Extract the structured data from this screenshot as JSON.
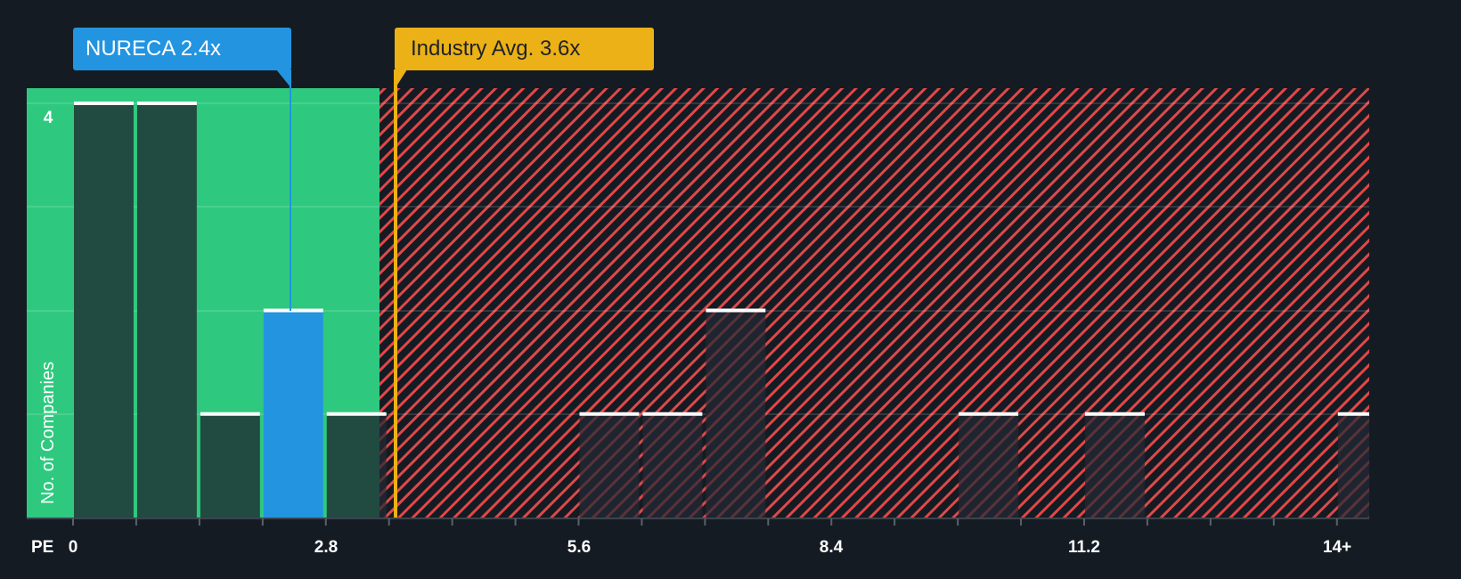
{
  "colors": {
    "background": "#151b23",
    "below_avg_region": "#2ec97f",
    "above_avg_hatch": "#e04848",
    "bar_fill_below": "#214a41",
    "bar_fill_above": "#1f2530",
    "company_bar": "#2394e0",
    "industry_line": "#ebb116",
    "bar_cap": "#ffffff"
  },
  "callouts": {
    "company": {
      "label": "NURECA 2.4x",
      "value": 2.4
    },
    "industry": {
      "label": "Industry Avg. 3.6x",
      "value": 3.6
    }
  },
  "axes": {
    "x_title": "PE",
    "y_title": "No. of Companies",
    "x_ticks": [
      "0",
      "2.8",
      "5.6",
      "8.4",
      "11.2",
      "14+"
    ],
    "y_ticks": [
      "4"
    ]
  },
  "chart_data": {
    "type": "bar",
    "title": "",
    "xlabel": "PE",
    "ylabel": "No. of Companies",
    "bin_width": 0.7,
    "categories": [
      "0-0.7",
      "0.7-1.4",
      "1.4-2.1",
      "2.1-2.8",
      "2.8-3.5",
      "3.5-4.2",
      "4.2-4.9",
      "4.9-5.6",
      "5.6-6.3",
      "6.3-7.0",
      "7.0-7.7",
      "7.7-8.4",
      "8.4-9.1",
      "9.1-9.8",
      "9.8-10.5",
      "10.5-11.2",
      "11.2-11.9",
      "11.9-12.6",
      "12.6-13.3",
      "13.3-14.0",
      "14+"
    ],
    "values": [
      4,
      4,
      1,
      2,
      1,
      0,
      0,
      0,
      1,
      1,
      2,
      0,
      0,
      0,
      1,
      0,
      1,
      0,
      0,
      0,
      1
    ],
    "highlight_bin": 3,
    "company": "NURECA",
    "company_value": 2.4,
    "industry_avg": 3.6,
    "x_tick_labels": [
      "0",
      "2.8",
      "5.6",
      "8.4",
      "11.2",
      "14+"
    ],
    "y_tick_labels": [
      "4"
    ],
    "ylim": [
      0,
      4.15
    ],
    "grid": true,
    "legend": "none",
    "annotations": [
      "NURECA 2.4x",
      "Industry Avg. 3.6x"
    ]
  }
}
